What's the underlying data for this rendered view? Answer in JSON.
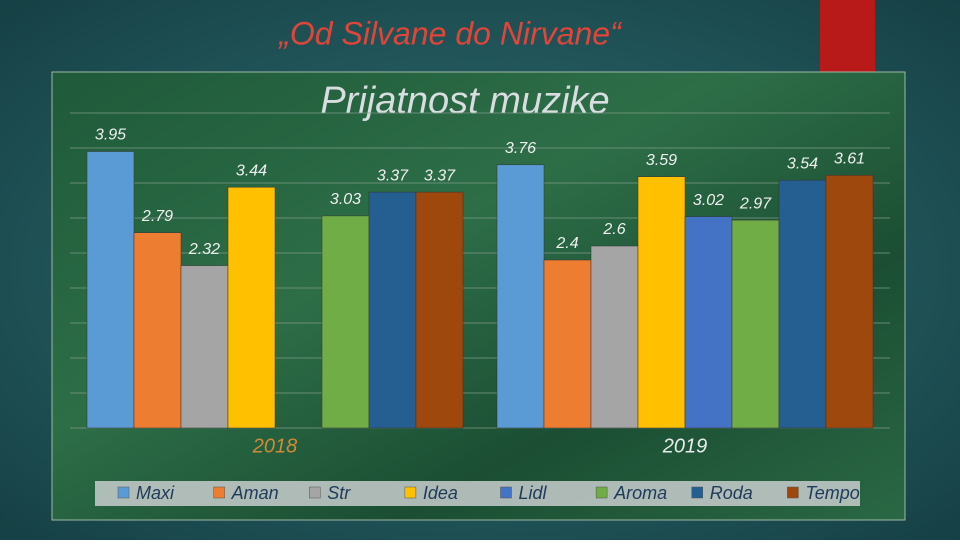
{
  "slide_title": "„Od Silvane do Nirvane“",
  "chart_data": {
    "type": "bar",
    "title": "Prijatnost muzike",
    "categories": [
      "2018",
      "2019"
    ],
    "series": [
      {
        "name": "Maxi",
        "color": "#5b9bd5",
        "values": [
          3.95,
          3.76
        ]
      },
      {
        "name": "Aman",
        "color": "#ed7d31",
        "values": [
          2.79,
          2.4
        ]
      },
      {
        "name": "Str",
        "color": "#a5a5a5",
        "values": [
          2.32,
          2.6
        ]
      },
      {
        "name": "Idea",
        "color": "#ffc000",
        "values": [
          3.44,
          3.59
        ]
      },
      {
        "name": "Lidl",
        "color": "#4472c4",
        "values": [
          null,
          3.02
        ]
      },
      {
        "name": "Aroma",
        "color": "#70ad47",
        "values": [
          3.03,
          2.97
        ]
      },
      {
        "name": "Roda",
        "color": "#255e91",
        "values": [
          3.37,
          3.54
        ]
      },
      {
        "name": "Tempo",
        "color": "#9e480e",
        "values": [
          3.37,
          3.61
        ]
      }
    ],
    "ylim": [
      0,
      4.5
    ],
    "yticks": [
      0,
      0.5,
      1,
      1.5,
      2,
      2.5,
      3,
      3.5,
      4,
      4.5
    ],
    "grid": true,
    "legend": "bottom"
  }
}
